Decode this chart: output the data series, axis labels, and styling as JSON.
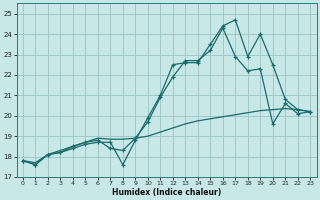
{
  "xlabel": "Humidex (Indice chaleur)",
  "bg_color": "#c8e8e8",
  "grid_color": "#a0c8c8",
  "line_color": "#1a6b6b",
  "xlim": [
    -0.5,
    23.5
  ],
  "ylim": [
    17,
    25.5
  ],
  "yticks": [
    17,
    18,
    19,
    20,
    21,
    22,
    23,
    24,
    25
  ],
  "xticks": [
    0,
    1,
    2,
    3,
    4,
    5,
    6,
    7,
    8,
    9,
    10,
    11,
    12,
    13,
    14,
    15,
    16,
    17,
    18,
    19,
    20,
    21,
    22,
    23
  ],
  "line1_x": [
    0,
    1,
    2,
    3,
    4,
    5,
    6,
    7,
    8,
    9,
    10,
    11,
    12,
    13,
    14,
    15,
    16,
    17,
    18,
    19,
    20,
    21,
    22,
    23
  ],
  "line1_y": [
    17.8,
    17.6,
    18.1,
    18.2,
    18.4,
    18.6,
    18.7,
    18.7,
    17.6,
    18.8,
    19.9,
    21.0,
    22.5,
    22.6,
    22.6,
    23.5,
    24.4,
    24.7,
    22.9,
    24.0,
    22.5,
    20.8,
    20.3,
    20.2
  ],
  "line2_x": [
    0,
    1,
    2,
    3,
    4,
    5,
    6,
    7,
    8,
    9,
    10,
    11,
    12,
    13,
    14,
    15,
    16,
    17,
    18,
    19,
    20,
    21,
    22,
    23
  ],
  "line2_y": [
    17.8,
    17.6,
    18.1,
    18.2,
    18.5,
    18.7,
    18.8,
    18.4,
    18.3,
    18.9,
    19.7,
    20.9,
    21.9,
    22.7,
    22.7,
    23.2,
    24.3,
    22.9,
    22.2,
    22.3,
    19.6,
    20.6,
    20.1,
    20.2
  ],
  "line3_x": [
    0,
    1,
    2,
    3,
    4,
    5,
    6,
    7,
    8,
    9,
    10,
    11,
    12,
    13,
    14,
    15,
    16,
    17,
    18,
    19,
    20,
    21,
    22,
    23
  ],
  "line3_y": [
    17.8,
    17.7,
    18.1,
    18.3,
    18.5,
    18.7,
    18.9,
    18.85,
    18.85,
    18.9,
    19.0,
    19.2,
    19.4,
    19.6,
    19.75,
    19.85,
    19.95,
    20.05,
    20.15,
    20.25,
    20.3,
    20.35,
    20.3,
    20.2
  ]
}
